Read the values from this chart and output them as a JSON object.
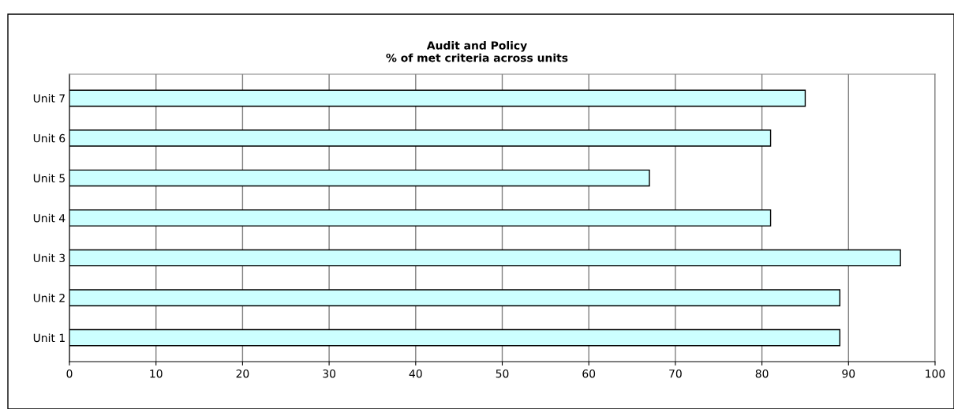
{
  "chart_data": {
    "type": "bar",
    "orientation": "horizontal",
    "title": "Audit and Policy\n% of met criteria across units",
    "categories": [
      "Unit 7",
      "Unit 6",
      "Unit 5",
      "Unit 4",
      "Unit 3",
      "Unit 2",
      "Unit 1"
    ],
    "values": [
      85,
      81,
      67,
      81,
      96,
      89,
      89
    ],
    "color": "#ccffff",
    "xlim": [
      0,
      100
    ],
    "xticks": [
      0,
      10,
      20,
      30,
      40,
      50,
      60,
      70,
      80,
      90,
      100
    ],
    "grid": "x",
    "legend": false
  }
}
